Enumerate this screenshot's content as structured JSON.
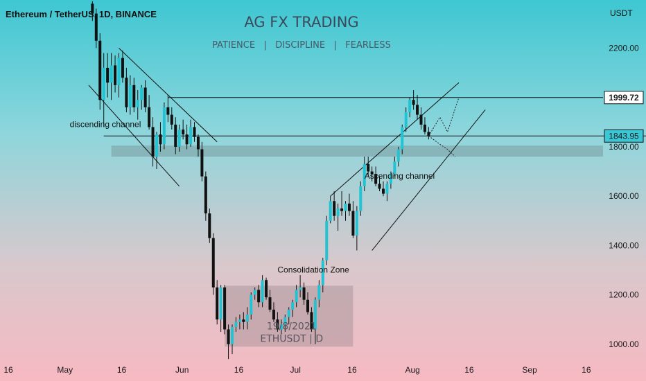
{
  "chart_data": {
    "type": "candlestick",
    "title": "Ethereum / TetherUS, 1D, BINANCE",
    "watermark": {
      "title": "AG FX TRADING",
      "subtitle": "PATIENCE   |   DISCIPLINE   |   FEARLESS"
    },
    "currency_label": "USDT",
    "y_ticks": [
      1000,
      1200,
      1400,
      1600,
      1800,
      2000,
      2200
    ],
    "y_tick_labels": [
      "1000.00",
      "1200.00",
      "1400.00",
      "1600.00",
      "1800.00",
      "2000.00",
      "2200.00"
    ],
    "ylim": [
      935,
      2395
    ],
    "x_ticks": [
      {
        "label": "16",
        "day": 0
      },
      {
        "label": "May",
        "day": 15
      },
      {
        "label": "16",
        "day": 30
      },
      {
        "label": "Jun",
        "day": 46
      },
      {
        "label": "16",
        "day": 61
      },
      {
        "label": "Jul",
        "day": 76
      },
      {
        "label": "16",
        "day": 91
      },
      {
        "label": "Aug",
        "day": 107
      },
      {
        "label": "16",
        "day": 122
      },
      {
        "label": "Sep",
        "day": 138
      },
      {
        "label": "16",
        "day": 153
      }
    ],
    "price_labels": [
      {
        "value": 1999.72,
        "text": "1999.72",
        "style": "outline"
      },
      {
        "value": 1843.95,
        "text": "1843.95",
        "style": "filled"
      }
    ],
    "support_zone": [
      1760,
      1805
    ],
    "horizontal_lines": [
      1999.72,
      1843.95
    ],
    "annotations": [
      {
        "text": "discending channel",
        "day": 17,
        "price": 1880
      },
      {
        "text": "Ascending channel",
        "day": 95,
        "price": 1670
      },
      {
        "text": "Consolidation Zone",
        "day": 72,
        "price": 1290
      }
    ],
    "consolidation_zone": {
      "day_start": 58,
      "day_end": 92,
      "price_low": 990,
      "price_high": 1237,
      "label_date": "19/8/2021",
      "label_symbol": "ETHUSDT  |  D"
    },
    "candles": [
      [
        23,
        2380,
        2390,
        2310,
        2340
      ],
      [
        24,
        2340,
        2360,
        2200,
        2230
      ],
      [
        25,
        2230,
        2260,
        1950,
        1990
      ],
      [
        26,
        1990,
        2180,
        1880,
        2120
      ],
      [
        27,
        2120,
        2180,
        2000,
        2060
      ],
      [
        28,
        2060,
        2180,
        1990,
        2130
      ],
      [
        29,
        2130,
        2170,
        2020,
        2050
      ],
      [
        30,
        2050,
        2180,
        2000,
        2160
      ],
      [
        31,
        2160,
        2190,
        2060,
        2080
      ],
      [
        32,
        2080,
        2120,
        1940,
        1960
      ],
      [
        33,
        1960,
        2090,
        1930,
        2050
      ],
      [
        34,
        2050,
        2080,
        1940,
        1960
      ],
      [
        35,
        1960,
        2030,
        1910,
        1990
      ],
      [
        36,
        1990,
        2050,
        1950,
        2040
      ],
      [
        37,
        2040,
        2070,
        1940,
        1960
      ],
      [
        38,
        1960,
        2010,
        1870,
        1880
      ],
      [
        39,
        1880,
        1920,
        1720,
        1760
      ],
      [
        40,
        1760,
        1860,
        1710,
        1850
      ],
      [
        41,
        1850,
        1900,
        1780,
        1810
      ],
      [
        42,
        1810,
        1980,
        1790,
        1960
      ],
      [
        43,
        1960,
        2010,
        1900,
        1930
      ],
      [
        44,
        1930,
        1960,
        1870,
        1890
      ],
      [
        45,
        1890,
        1920,
        1770,
        1800
      ],
      [
        46,
        1800,
        1890,
        1780,
        1870
      ],
      [
        47,
        1870,
        1910,
        1830,
        1850
      ],
      [
        48,
        1850,
        1890,
        1790,
        1810
      ],
      [
        49,
        1810,
        1910,
        1800,
        1880
      ],
      [
        50,
        1880,
        1900,
        1820,
        1840
      ],
      [
        51,
        1840,
        1850,
        1760,
        1790
      ],
      [
        52,
        1790,
        1820,
        1660,
        1680
      ],
      [
        53,
        1680,
        1700,
        1500,
        1530
      ],
      [
        54,
        1530,
        1550,
        1410,
        1430
      ],
      [
        55,
        1430,
        1450,
        1200,
        1230
      ],
      [
        56,
        1230,
        1260,
        1080,
        1100
      ],
      [
        57,
        1100,
        1240,
        1050,
        1230
      ],
      [
        58,
        1230,
        1240,
        1040,
        1060
      ],
      [
        59,
        1060,
        1080,
        940,
        1000
      ],
      [
        60,
        1000,
        1080,
        960,
        1070
      ],
      [
        61,
        1070,
        1110,
        1050,
        1090
      ],
      [
        62,
        1090,
        1120,
        1060,
        1100
      ],
      [
        63,
        1100,
        1130,
        1060,
        1090
      ],
      [
        64,
        1090,
        1150,
        1060,
        1120
      ],
      [
        65,
        1120,
        1210,
        1100,
        1200
      ],
      [
        66,
        1200,
        1230,
        1180,
        1220
      ],
      [
        67,
        1220,
        1240,
        1150,
        1170
      ],
      [
        68,
        1170,
        1280,
        1150,
        1260
      ],
      [
        69,
        1260,
        1270,
        1180,
        1190
      ],
      [
        70,
        1190,
        1220,
        1130,
        1140
      ],
      [
        71,
        1140,
        1170,
        1090,
        1100
      ],
      [
        72,
        1100,
        1130,
        1050,
        1060
      ],
      [
        73,
        1060,
        1100,
        1040,
        1080
      ],
      [
        74,
        1080,
        1120,
        1050,
        1110
      ],
      [
        75,
        1110,
        1150,
        1080,
        1140
      ],
      [
        76,
        1140,
        1180,
        1110,
        1170
      ],
      [
        77,
        1170,
        1240,
        1150,
        1220
      ],
      [
        78,
        1220,
        1280,
        1190,
        1230
      ],
      [
        79,
        1230,
        1250,
        1160,
        1180
      ],
      [
        80,
        1180,
        1210,
        1120,
        1130
      ],
      [
        81,
        1130,
        1150,
        1050,
        1060
      ],
      [
        82,
        1060,
        1190,
        1000,
        1180
      ],
      [
        83,
        1180,
        1260,
        1150,
        1240
      ],
      [
        84,
        1240,
        1350,
        1210,
        1340
      ],
      [
        85,
        1340,
        1520,
        1320,
        1500
      ],
      [
        86,
        1500,
        1600,
        1490,
        1580
      ],
      [
        87,
        1580,
        1620,
        1500,
        1520
      ],
      [
        88,
        1520,
        1570,
        1460,
        1550
      ],
      [
        89,
        1550,
        1620,
        1520,
        1540
      ],
      [
        90,
        1540,
        1580,
        1500,
        1570
      ],
      [
        91,
        1570,
        1610,
        1520,
        1540
      ],
      [
        92,
        1540,
        1580,
        1430,
        1440
      ],
      [
        93,
        1440,
        1560,
        1380,
        1540
      ],
      [
        94,
        1540,
        1660,
        1520,
        1640
      ],
      [
        95,
        1640,
        1760,
        1620,
        1730
      ],
      [
        96,
        1730,
        1760,
        1680,
        1700
      ],
      [
        97,
        1700,
        1720,
        1660,
        1690
      ],
      [
        98,
        1690,
        1720,
        1640,
        1650
      ],
      [
        99,
        1650,
        1680,
        1620,
        1630
      ],
      [
        100,
        1630,
        1660,
        1600,
        1610
      ],
      [
        101,
        1610,
        1660,
        1580,
        1650
      ],
      [
        102,
        1650,
        1700,
        1630,
        1690
      ],
      [
        103,
        1690,
        1760,
        1680,
        1740
      ],
      [
        104,
        1740,
        1800,
        1720,
        1790
      ],
      [
        105,
        1790,
        1890,
        1770,
        1880
      ],
      [
        106,
        1880,
        1960,
        1860,
        1940
      ],
      [
        107,
        1940,
        2000,
        1920,
        1990
      ],
      [
        108,
        1990,
        2030,
        1950,
        1970
      ],
      [
        109,
        1970,
        2010,
        1910,
        1930
      ],
      [
        110,
        1930,
        1960,
        1870,
        1890
      ],
      [
        111,
        1890,
        1920,
        1850,
        1860
      ],
      [
        112,
        1860,
        1880,
        1830,
        1844
      ]
    ]
  }
}
